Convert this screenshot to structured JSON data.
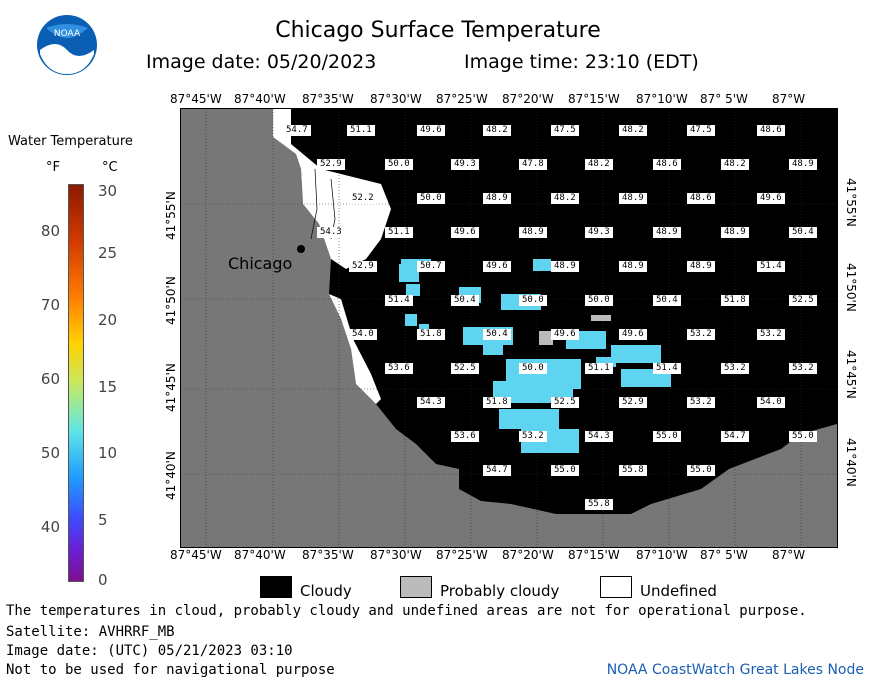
{
  "header": {
    "title": "Chicago Surface Temperature",
    "image_date": "Image date: 05/20/2023",
    "image_time": "Image time: 23:10 (EDT)",
    "logo_text": "NOAA"
  },
  "color_scale": {
    "title": "Water Temperature",
    "unit_f": "°F",
    "unit_c": "°C",
    "f_ticks": [
      "40",
      "50",
      "60",
      "70",
      "80"
    ],
    "c_ticks": [
      "0",
      "5",
      "10",
      "15",
      "20",
      "25",
      "30"
    ]
  },
  "map": {
    "lon_labels": [
      "87°45'W",
      "87°40'W",
      "87°35'W",
      "87°30'W",
      "87°25'W",
      "87°20'W",
      "87°15'W",
      "87°10'W",
      "87° 5'W",
      "87°W"
    ],
    "lat_labels": [
      "41°55'N",
      "41°50'N",
      "41°45'N",
      "41°40'N"
    ],
    "city_label": "Chicago",
    "temperature_values": [
      [
        "54.7",
        "51.1",
        "49.6",
        "48.2",
        "47.5",
        "48.2",
        "47.5",
        "48.6"
      ],
      [
        "52.9",
        "50.0",
        "49.3",
        "47.8",
        "48.2",
        "48.6",
        "48.2",
        "48.9"
      ],
      [
        "52.2",
        "50.0",
        "48.9",
        "48.2",
        "48.9",
        "48.6",
        "49.6"
      ],
      [
        "54.3",
        "51.1",
        "49.6",
        "48.9",
        "49.3",
        "48.9",
        "48.9",
        "50.4"
      ],
      [
        "52.9",
        "50.7",
        "49.6",
        "48.9",
        "48.9",
        "48.9",
        "51.4"
      ],
      [
        "51.4",
        "50.4",
        "50.0",
        "50.0",
        "50.4",
        "51.8",
        "52.5"
      ],
      [
        "54.0",
        "51.8",
        "50.4",
        "49.6",
        "49.6",
        "53.2",
        "53.2"
      ],
      [
        "53.6",
        "52.5",
        "50.0",
        "51.1",
        "51.4",
        "53.2",
        "53.2"
      ],
      [
        "54.3",
        "51.8",
        "52.5",
        "52.9",
        "53.2",
        "54.0"
      ],
      [
        "53.6",
        "53.2",
        "54.3",
        "55.0",
        "54.7",
        "55.0"
      ],
      [
        "54.7",
        "55.0",
        "55.8",
        "55.0"
      ],
      [
        "55.8"
      ]
    ]
  },
  "legend": {
    "cloudy": "Cloudy",
    "probably_cloudy": "Probably cloudy",
    "undefined": "Undefined",
    "colors": {
      "cloudy": "#000000",
      "probably_cloudy": "#bbbbbb",
      "undefined": "#ffffff",
      "land": "#777777",
      "water_cold": "#5fd4f0"
    }
  },
  "footer": {
    "disclaimer": "The temperatures in cloud, probably cloudy and undefined areas are not for operational purpose.",
    "satellite": "Satellite: AVHRRF_MB",
    "utc_date": "Image date: (UTC) 05/21/2023  03:10",
    "nav_warning": "Not to be used for navigational purpose",
    "credit": "NOAA CoastWatch Great Lakes Node"
  }
}
